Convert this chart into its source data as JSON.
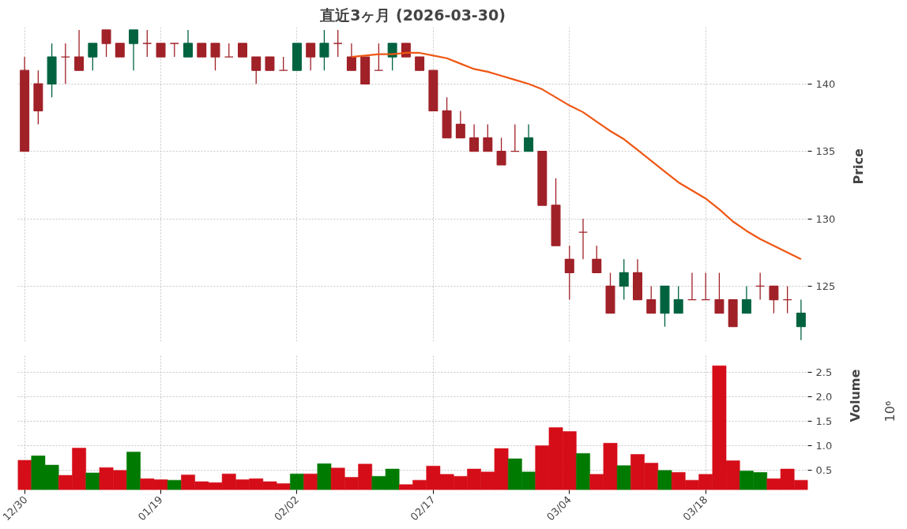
{
  "chart_data": [
    {
      "type": "candlestick",
      "title": "直近3ヶ月 (2026-03-30)",
      "ylabel": "Price",
      "tick_labels": "y",
      "grid": true,
      "ylim": [
        120.9,
        144.2
      ],
      "yticks": [
        125,
        130,
        135,
        140
      ],
      "categories": [
        null,
        null,
        null,
        null,
        null,
        null,
        null,
        null,
        null,
        null,
        null,
        null,
        null,
        null,
        null,
        null,
        null,
        null,
        null,
        null,
        null,
        null,
        null,
        null,
        null,
        null,
        null,
        null,
        null,
        null,
        null,
        null,
        null,
        null,
        null,
        null,
        null,
        null,
        null,
        null,
        null,
        null,
        null,
        null,
        null,
        null,
        null,
        null,
        null,
        null,
        null,
        null,
        null,
        null,
        null,
        null,
        null,
        null
      ],
      "ohlc": [
        [
          141,
          142,
          135,
          135
        ],
        [
          140,
          141,
          137,
          138
        ],
        [
          140,
          143,
          139,
          142
        ],
        [
          142,
          143,
          140,
          142
        ],
        [
          142,
          144,
          141,
          141
        ],
        [
          142,
          143,
          141,
          143
        ],
        [
          144,
          144,
          142,
          143
        ],
        [
          143,
          143,
          142,
          142
        ],
        [
          143,
          144,
          141,
          144
        ],
        [
          143,
          144,
          142,
          143
        ],
        [
          143,
          143,
          142,
          142
        ],
        [
          143,
          143,
          142,
          143
        ],
        [
          142,
          144,
          142,
          143
        ],
        [
          143,
          143,
          142,
          142
        ],
        [
          143,
          143,
          141,
          142
        ],
        [
          142,
          143,
          142,
          142
        ],
        [
          143,
          143,
          142,
          142
        ],
        [
          142,
          142,
          140,
          141
        ],
        [
          142,
          142,
          141,
          141
        ],
        [
          141,
          142,
          141,
          141
        ],
        [
          141,
          143,
          141,
          143
        ],
        [
          143,
          143,
          141,
          142
        ],
        [
          142,
          144,
          141,
          143
        ],
        [
          143,
          144,
          142,
          143
        ],
        [
          142,
          143,
          141,
          141
        ],
        [
          142,
          142,
          140,
          140
        ],
        [
          141,
          143,
          141,
          141
        ],
        [
          142,
          143,
          141,
          143
        ],
        [
          143,
          143,
          142,
          142
        ],
        [
          142,
          142,
          141,
          141
        ],
        [
          141,
          141,
          138,
          138
        ],
        [
          138,
          139,
          136,
          136
        ],
        [
          137,
          138,
          136,
          136
        ],
        [
          136,
          137,
          135,
          135
        ],
        [
          136,
          137,
          135,
          135
        ],
        [
          135,
          136,
          134,
          134
        ],
        [
          135,
          137,
          135,
          135
        ],
        [
          135,
          137,
          135,
          136
        ],
        [
          135,
          135,
          131,
          131
        ],
        [
          131,
          133,
          128,
          128
        ],
        [
          127,
          128,
          124,
          126
        ],
        [
          129,
          130,
          127,
          129
        ],
        [
          127,
          128,
          126,
          126
        ],
        [
          125,
          126,
          123,
          123
        ],
        [
          125,
          127,
          124,
          126
        ],
        [
          126,
          127,
          124,
          124
        ],
        [
          124,
          125,
          123,
          123
        ],
        [
          123,
          125,
          122,
          125
        ],
        [
          123,
          125,
          123,
          124
        ],
        [
          124,
          126,
          124,
          124
        ],
        [
          124,
          126,
          124,
          124
        ],
        [
          124,
          126,
          123,
          123
        ],
        [
          124,
          124,
          122,
          122
        ],
        [
          123,
          125,
          123,
          124
        ],
        [
          125,
          126,
          124,
          125
        ],
        [
          125,
          125,
          123,
          124
        ],
        [
          124,
          125,
          123,
          124
        ],
        [
          122,
          124,
          121,
          123
        ]
      ],
      "colors": [
        "#a02128",
        "#a02128",
        "#006340",
        "#a02128",
        "#a02128",
        "#006340",
        "#a02128",
        "#a02128",
        "#006340",
        "#a02128",
        "#a02128",
        "#a02128",
        "#006340",
        "#a02128",
        "#a02128",
        "#a02128",
        "#a02128",
        "#a02128",
        "#a02128",
        "#a02128",
        "#006340",
        "#a02128",
        "#006340",
        "#a02128",
        "#a02128",
        "#a02128",
        "#a02128",
        "#006340",
        "#a02128",
        "#a02128",
        "#a02128",
        "#a02128",
        "#a02128",
        "#a02128",
        "#a02128",
        "#a02128",
        "#a02128",
        "#006340",
        "#a02128",
        "#a02128",
        "#a02128",
        "#a02128",
        "#a02128",
        "#a02128",
        "#006340",
        "#a02128",
        "#a02128",
        "#006340",
        "#006340",
        "#a02128",
        "#a02128",
        "#a02128",
        "#a02128",
        "#006340",
        "#a02128",
        "#a02128",
        "#a02128",
        "#006340"
      ],
      "series": [
        {
          "type": "line",
          "color": "#ef5714",
          "values": [
            null,
            null,
            null,
            null,
            null,
            null,
            null,
            null,
            null,
            null,
            null,
            null,
            null,
            null,
            null,
            null,
            null,
            null,
            null,
            null,
            null,
            null,
            null,
            null,
            142.0,
            142.1,
            142.2,
            142.2,
            142.3,
            142.3,
            142.1,
            141.9,
            141.5,
            141.1,
            140.9,
            140.6,
            140.3,
            140.0,
            139.6,
            139.0,
            138.4,
            137.9,
            137.2,
            136.5,
            135.9,
            135.1,
            134.3,
            133.5,
            132.7,
            132.1,
            131.5,
            130.7,
            129.8,
            129.1,
            128.5,
            128.0,
            127.5,
            127.0
          ]
        }
      ]
    },
    {
      "type": "bar",
      "ylabel": "Volume",
      "annotations": [
        "10⁶"
      ],
      "grid": true,
      "ylim": [
        0.09,
        2.88
      ],
      "yticks": [
        0.5,
        {
          "value": 1,
          "label": "1.0"
        },
        1.5,
        {
          "value": 2,
          "label": "2.0"
        },
        2.5
      ],
      "categories": [
        "12/30",
        null,
        null,
        null,
        null,
        null,
        null,
        null,
        null,
        null,
        "01/19",
        null,
        null,
        null,
        null,
        null,
        null,
        null,
        null,
        null,
        "02/02",
        null,
        null,
        null,
        null,
        null,
        null,
        null,
        null,
        null,
        "02/17",
        null,
        null,
        null,
        null,
        null,
        null,
        null,
        null,
        null,
        "03/04",
        null,
        null,
        null,
        null,
        null,
        null,
        null,
        null,
        null,
        "03/18",
        null,
        null,
        null,
        null,
        null,
        null,
        null
      ],
      "values": [
        0.7,
        0.79,
        0.6,
        0.39,
        0.95,
        0.44,
        0.55,
        0.49,
        0.87,
        0.32,
        0.3,
        0.29,
        0.4,
        0.26,
        0.24,
        0.42,
        0.3,
        0.32,
        0.26,
        0.22,
        0.42,
        0.42,
        0.63,
        0.54,
        0.35,
        0.62,
        0.37,
        0.52,
        0.2,
        0.29,
        0.58,
        0.41,
        0.37,
        0.52,
        0.46,
        0.94,
        0.73,
        0.46,
        1.0,
        1.37,
        1.29,
        0.84,
        0.41,
        1.05,
        0.59,
        0.82,
        0.64,
        0.49,
        0.45,
        0.29,
        0.41,
        2.64,
        0.69,
        0.48,
        0.45,
        0.32,
        0.52,
        0.29
      ],
      "colors": [
        "#d50d18",
        "#007a00",
        "#007a00",
        "#d50d18",
        "#d50d18",
        "#007a00",
        "#d50d18",
        "#d50d18",
        "#007a00",
        "#d50d18",
        "#d50d18",
        "#007a00",
        "#d50d18",
        "#d50d18",
        "#d50d18",
        "#d50d18",
        "#d50d18",
        "#d50d18",
        "#d50d18",
        "#d50d18",
        "#007a00",
        "#d50d18",
        "#007a00",
        "#d50d18",
        "#d50d18",
        "#d50d18",
        "#007a00",
        "#007a00",
        "#d50d18",
        "#d50d18",
        "#d50d18",
        "#d50d18",
        "#d50d18",
        "#d50d18",
        "#d50d18",
        "#d50d18",
        "#007a00",
        "#007a00",
        "#d50d18",
        "#d50d18",
        "#d50d18",
        "#007a00",
        "#d50d18",
        "#d50d18",
        "#007a00",
        "#d50d18",
        "#d50d18",
        "#007a00",
        "#d50d18",
        "#d50d18",
        "#d50d18",
        "#d50d18",
        "#d50d18",
        "#007a00",
        "#007a00",
        "#d50d18",
        "#d50d18",
        "#d50d18"
      ]
    }
  ]
}
